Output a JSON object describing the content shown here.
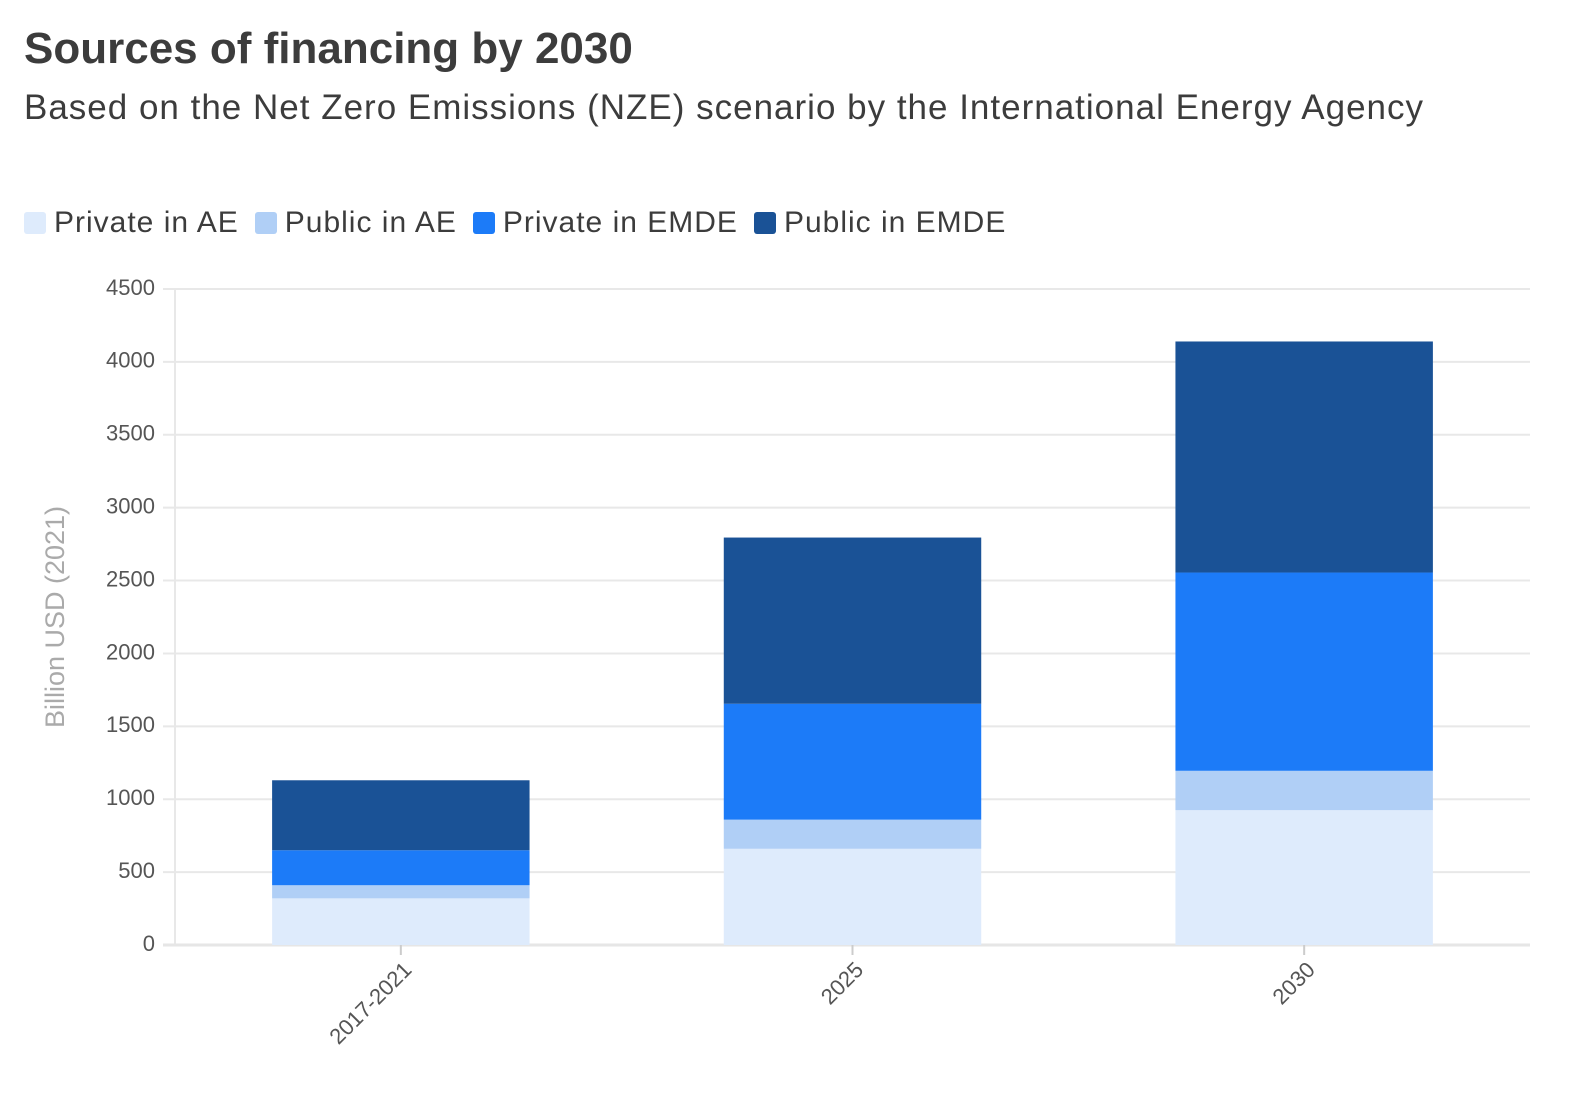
{
  "chart_data": {
    "type": "stacked_bar",
    "title": "Sources of financing by 2030",
    "subtitle": "Based on the Net Zero Emissions (NZE) scenario by the International Energy Agency",
    "y_label": "Billion USD (2021)",
    "categories": [
      "2017-2021",
      "2025",
      "2030"
    ],
    "series": [
      {
        "name": "Private in AE",
        "color": "#deebfc",
        "values": [
          320,
          660,
          925
        ]
      },
      {
        "name": "Public in AE",
        "color": "#b0cff6",
        "values": [
          90,
          200,
          270
        ]
      },
      {
        "name": "Private in EMDE",
        "color": "#1c7bf8",
        "values": [
          240,
          795,
          1360
        ]
      },
      {
        "name": "Public in EMDE",
        "color": "#1a5296",
        "values": [
          480,
          1140,
          1585
        ]
      }
    ],
    "ylim": [
      0,
      4500
    ],
    "yticks": [
      0,
      500,
      1000,
      1500,
      2000,
      2500,
      3000,
      3500,
      4000,
      4500
    ],
    "grid": true
  }
}
